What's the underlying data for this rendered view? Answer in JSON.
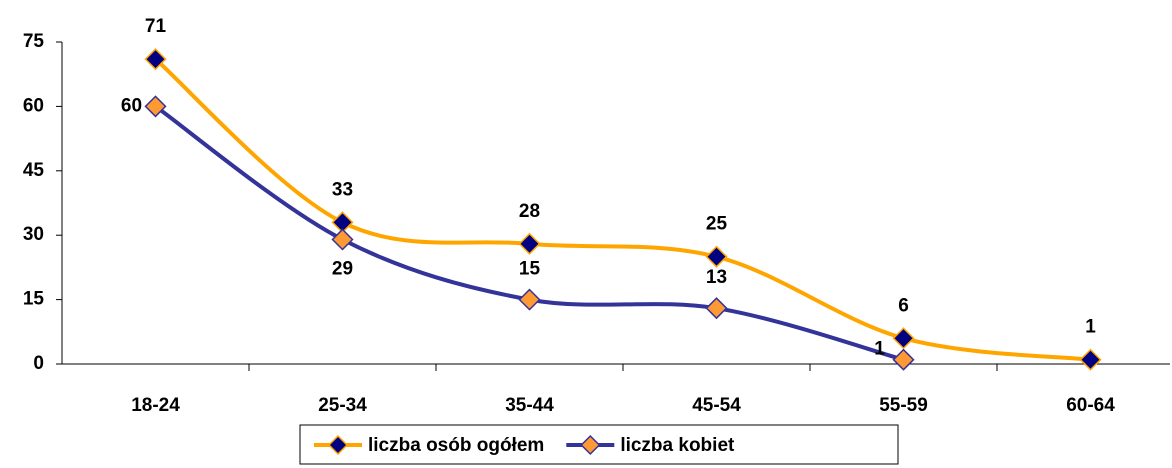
{
  "chart_data": {
    "type": "line",
    "categories": [
      "18-24",
      "25-34",
      "35-44",
      "45-54",
      "55-59",
      "60-64"
    ],
    "series": [
      {
        "name": "liczba osób ogółem",
        "color": "#ffa500",
        "marker_color": "#000080",
        "values": [
          71,
          33,
          28,
          25,
          6,
          1
        ]
      },
      {
        "name": "liczba kobiet",
        "color": "#333399",
        "marker_color": "#ff9933",
        "values": [
          60,
          29,
          15,
          13,
          1,
          null
        ]
      }
    ],
    "ylim": [
      0,
      75
    ],
    "yticks": [
      0,
      15,
      30,
      45,
      60,
      75
    ],
    "grid": false,
    "legend": "bottom"
  }
}
